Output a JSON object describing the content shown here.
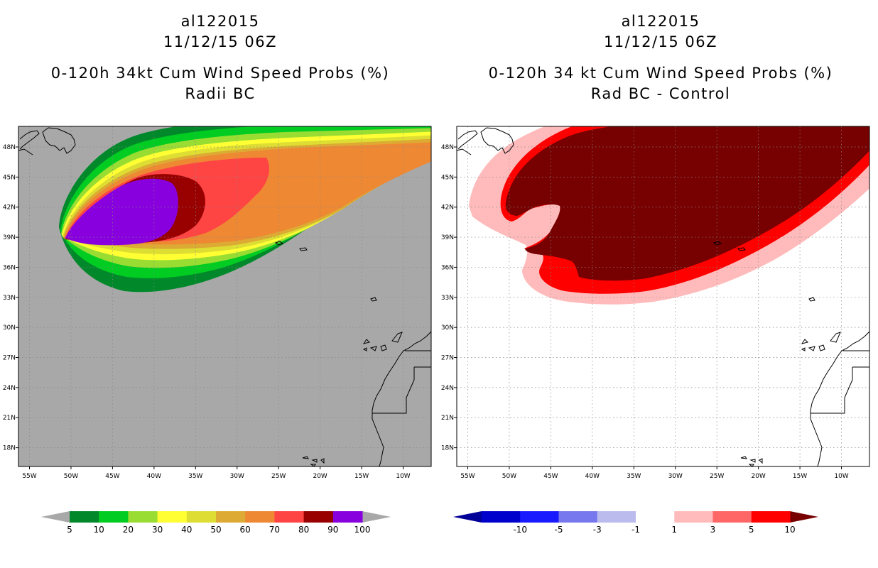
{
  "left_panel": {
    "title_line1": "al122015",
    "title_line2": "11/12/15 06Z",
    "title_line3": "0-120h 34kt Cum Wind Speed Probs (%)",
    "title_line4": "Radii BC",
    "lat_labels": [
      "48N",
      "45N",
      "42N",
      "39N",
      "36N",
      "33N",
      "30N",
      "27N",
      "24N",
      "21N",
      "18N"
    ],
    "lon_labels": [
      "55W",
      "50W",
      "45W",
      "40W",
      "35W",
      "30W",
      "25W",
      "20W",
      "15W",
      "10W"
    ],
    "colorbar": {
      "labels": [
        "5",
        "10",
        "20",
        "30",
        "40",
        "50",
        "60",
        "70",
        "80",
        "90",
        "100"
      ],
      "colors": [
        "#00882a",
        "#00cc22",
        "#99dd33",
        "#ffff33",
        "#dddd33",
        "#ddaa33",
        "#ee8833",
        "#ff4444",
        "#990000",
        "#8800dd"
      ],
      "end_color": "#a8a8a8"
    }
  },
  "right_panel": {
    "title_line1": "al122015",
    "title_line2": "11/12/15 06Z",
    "title_line3": "0-120h 34 kt Cum Wind Speed Probs (%)",
    "title_line4": "Rad BC - Control",
    "lat_labels": [
      "48N",
      "45N",
      "42N",
      "39N",
      "36N",
      "33N",
      "30N",
      "27N",
      "24N",
      "21N",
      "18N"
    ],
    "lon_labels": [
      "55W",
      "50W",
      "45W",
      "40W",
      "35W",
      "30W",
      "25W",
      "20W",
      "15W",
      "10W"
    ],
    "colorbar": {
      "labels": [
        "-10",
        "-5",
        "-3",
        "-1",
        "1",
        "3",
        "5",
        "10"
      ],
      "colors": [
        "#0000cc",
        "#1a1aff",
        "#7777ee",
        "#bbbbee",
        "#ffffff",
        "#ffbbbb",
        "#ff6666",
        "#ff0000"
      ],
      "low_end_color": "#000099",
      "high_end_color": "#770000"
    }
  },
  "colors": {
    "ocean_left": "#a8a8a8",
    "ocean_right": "#ffffff",
    "grid": "#888888"
  }
}
